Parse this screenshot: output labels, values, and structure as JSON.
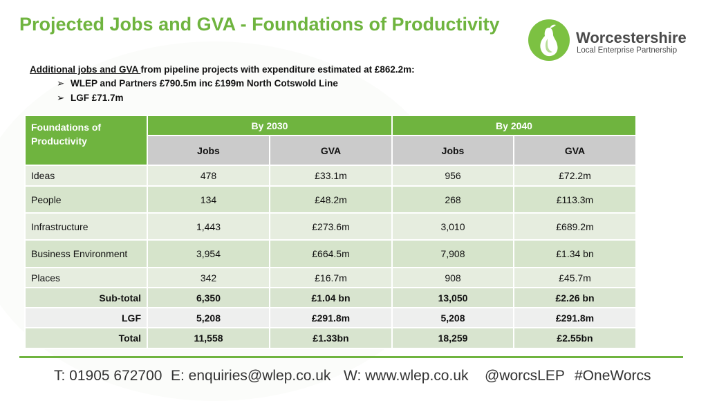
{
  "slide": {
    "title": "Projected Jobs and GVA - Foundations of Productivity"
  },
  "logo": {
    "name": "Worcestershire",
    "subtitle": "Local Enterprise Partnership"
  },
  "intro": {
    "underlined": "Additional jobs and GVA ",
    "rest": "from pipeline projects with expenditure estimated at £862.2m:",
    "bullets": [
      "WLEP and Partners £790.5m inc £199m North Cotswold Line",
      "LGF £71.7m"
    ]
  },
  "table": {
    "corner_header": "Foundations of Productivity",
    "group_headers": [
      "By 2030",
      "By 2040"
    ],
    "sub_headers": [
      "Jobs",
      "GVA",
      "Jobs",
      "GVA"
    ],
    "rows": [
      {
        "label": "Ideas",
        "values": [
          "478",
          "£33.1m",
          "956",
          "£72.2m"
        ]
      },
      {
        "label": "People",
        "values": [
          "134",
          "£48.2m",
          "268",
          "£113.3m"
        ]
      },
      {
        "label": "Infrastructure",
        "values": [
          "1,443",
          "£273.6m",
          "3,010",
          "£689.2m"
        ]
      },
      {
        "label": "Business Environment",
        "values": [
          "3,954",
          "£664.5m",
          "7,908",
          "£1.34 bn"
        ]
      },
      {
        "label": "Places",
        "values": [
          "342",
          "£16.7m",
          "908",
          "£45.7m"
        ]
      }
    ],
    "totals": [
      {
        "label": "Sub-total",
        "values": [
          "6,350",
          "£1.04 bn",
          "13,050",
          "£2.26 bn"
        ]
      },
      {
        "label": "LGF",
        "values": [
          "5,208",
          "£291.8m",
          "5,208",
          "£291.8m"
        ]
      },
      {
        "label": "Total",
        "values": [
          "11,558",
          "£1.33bn",
          "18,259",
          "£2.55bn"
        ]
      }
    ]
  },
  "footer": {
    "phone": "T: 01905 672700",
    "email": "E: enquiries@wlep.co.uk",
    "web": "W: www.wlep.co.uk",
    "twitter": "@worcsLEP",
    "hashtag": "#OneWorcs"
  },
  "colors": {
    "accent": "#6fb43f",
    "subheader": "#cbcbcb",
    "row_light": "#e6eddf",
    "row_dark": "#d6e4cb"
  }
}
